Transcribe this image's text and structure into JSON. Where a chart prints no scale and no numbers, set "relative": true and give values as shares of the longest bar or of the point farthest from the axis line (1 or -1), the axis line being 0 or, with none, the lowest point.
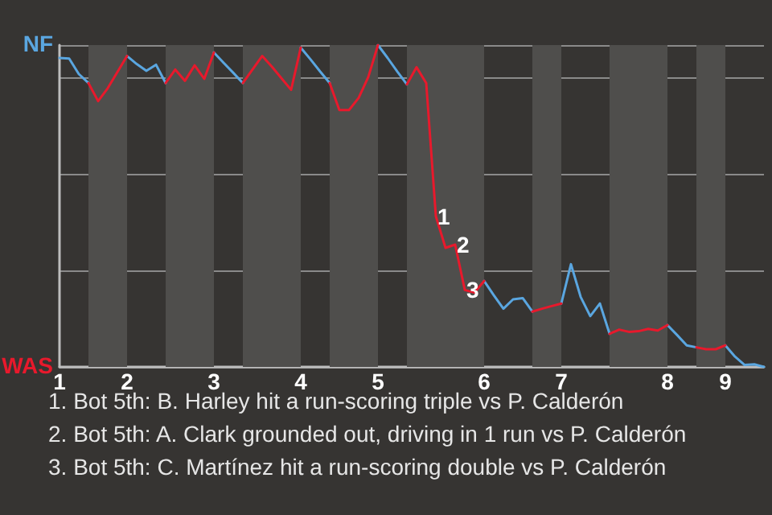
{
  "chart_data": {
    "type": "line",
    "relative": true,
    "categories": [
      "1",
      null,
      null,
      null,
      null,
      null,
      null,
      "2",
      null,
      null,
      null,
      null,
      null,
      null,
      null,
      null,
      "3",
      null,
      null,
      null,
      null,
      null,
      null,
      null,
      null,
      "4",
      null,
      null,
      null,
      null,
      null,
      null,
      null,
      "5",
      null,
      null,
      null,
      null,
      null,
      null,
      null,
      null,
      null,
      null,
      "6",
      null,
      null,
      null,
      null,
      null,
      null,
      null,
      "7",
      null,
      null,
      null,
      null,
      null,
      null,
      null,
      null,
      null,
      null,
      "8",
      null,
      null,
      null,
      null,
      null,
      "9",
      null,
      null,
      null,
      null
    ],
    "grid": "y",
    "marker": "none",
    "line_style": "solid",
    "series": [
      {
        "color": "#5aa6e0",
        "values": [
          0.96,
          0.958,
          0.91,
          0.882,
          null,
          null,
          null,
          0.966,
          0.941,
          0.92,
          0.939,
          0.882,
          null,
          null,
          null,
          null,
          0.977,
          0.945,
          0.914,
          0.882,
          null,
          null,
          null,
          null,
          null,
          0.992,
          0.956,
          0.918,
          0.882,
          null,
          null,
          null,
          null,
          1,
          0.96,
          0.918,
          0.878,
          null,
          null,
          null,
          null,
          null,
          null,
          null,
          0.267,
          0.223,
          0.181,
          0.21,
          0.214,
          0.172,
          null,
          null,
          0.197,
          0.319,
          0.218,
          0.158,
          0.197,
          0.103,
          null,
          null,
          null,
          null,
          null,
          0.13,
          0.099,
          0.067,
          0.061,
          null,
          null,
          0.067,
          0.032,
          0.006,
          0.008,
          0
        ]
      },
      {
        "color": "#e8192c",
        "values": [
          null,
          null,
          null,
          0.882,
          0.826,
          0.866,
          0.916,
          0.966,
          null,
          null,
          null,
          0.882,
          0.924,
          0.889,
          0.937,
          0.895,
          0.977,
          null,
          null,
          0.882,
          0.924,
          0.966,
          0.933,
          0.897,
          0.861,
          0.992,
          null,
          null,
          0.882,
          0.798,
          0.798,
          0.836,
          0.901,
          1,
          null,
          null,
          0.878,
          0.931,
          0.882,
          0.468,
          0.37,
          0.38,
          0.239,
          0.231,
          0.267,
          null,
          null,
          null,
          null,
          0.172,
          0.181,
          0.189,
          0.197,
          null,
          null,
          null,
          null,
          0.103,
          0.116,
          0.109,
          0.111,
          0.118,
          0.113,
          0.13,
          null,
          null,
          0.061,
          0.055,
          0.055,
          0.067,
          null,
          null,
          null,
          null
        ]
      }
    ],
    "annotations": [
      "NF",
      "WAS",
      {
        "text": "1",
        "y": 0.468
      },
      {
        "text": "2",
        "y": 0.38
      },
      {
        "text": "3",
        "y": 0.239
      },
      "1. Bot 5th: B. Harley hit a run-scoring triple vs P. Calderón",
      "2. Bot 5th: A. Clark grounded out, driving in 1 run vs P. Calderón",
      "3. Bot 5th: C. Martínez hit a run-scoring double vs P. Calderón"
    ]
  }
}
